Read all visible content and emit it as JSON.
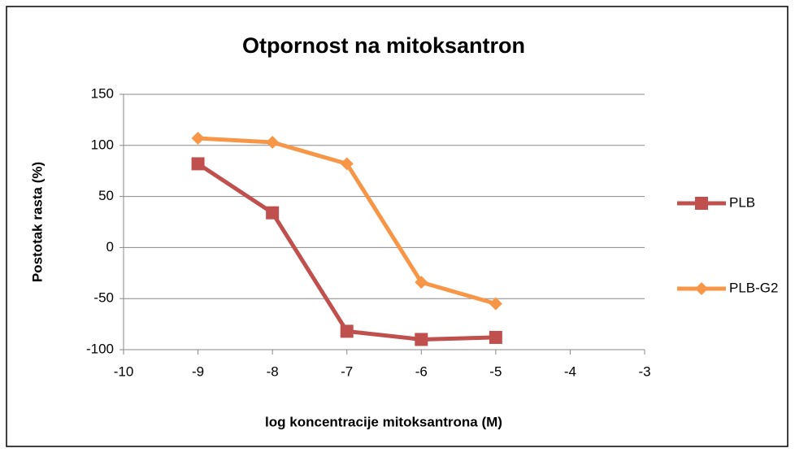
{
  "chart_data": {
    "type": "line",
    "title": "Otpornost na mitoksantron",
    "xlabel": "log koncentracije mitoksantrona (M)",
    "ylabel": "Postotak rasta (%)",
    "x": [
      -9,
      -8,
      -7,
      -6,
      -5
    ],
    "series": [
      {
        "name": "PLB",
        "color": "#c0504d",
        "marker": "square",
        "values": [
          82,
          34,
          -82,
          -90,
          -88
        ]
      },
      {
        "name": "PLB-G2",
        "color": "#f79646",
        "marker": "diamond",
        "values": [
          107,
          103,
          82,
          -34,
          -55
        ]
      }
    ],
    "xlim": [
      -10,
      -3
    ],
    "xticks": [
      -10,
      -9,
      -8,
      -7,
      -6,
      -5,
      -4,
      -3
    ],
    "ylim": [
      -100,
      150
    ],
    "yticks": [
      -100,
      -50,
      0,
      50,
      100,
      150
    ],
    "grid": true,
    "legend": "right"
  }
}
